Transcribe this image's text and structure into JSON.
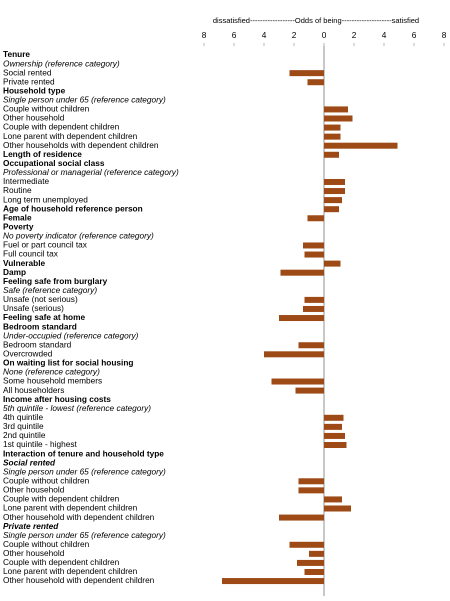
{
  "chart_data": {
    "type": "bar",
    "orientation": "horizontal",
    "title": "dissatisfied------------------Odds  of being--------------------satisfied",
    "color": "#9e4a17",
    "xlim": [
      -8,
      8
    ],
    "xticks": [
      {
        "value": -8,
        "label": "8"
      },
      {
        "value": -6,
        "label": "6"
      },
      {
        "value": -4,
        "label": "4"
      },
      {
        "value": -2,
        "label": "2"
      },
      0,
      2,
      4,
      6,
      8
    ],
    "categories": [
      "Tenure",
      "Ownership (reference category)",
      "Social rented",
      "Private rented",
      "Household type",
      "Single person under 65 (reference category)",
      "Couple without children",
      "Other household",
      "Couple with dependent children",
      "Lone parent with dependent children",
      "Other households with dependent children",
      "Length of residence",
      "Occupational social class",
      "Professional or managerial (reference category)",
      "Intermediate",
      "Routine",
      "Long term unemployed",
      "Age of household reference person",
      "Female",
      "Poverty",
      "No poverty indicator (reference category)",
      "Fuel or part council tax",
      "Full council tax",
      "Vulnerable",
      "Damp",
      "Feeling safe from burglary",
      "Safe (reference category)",
      "Unsafe (not serious)",
      "Unsafe (serious)",
      "Feeling safe at home",
      "Bedroom standard",
      "Under-occupied (reference category)",
      "Bedroom standard",
      "Overcrowded",
      "On waiting list for social housing",
      "None (reference category)",
      "Some household members",
      "All householders",
      "Income after housing costs",
      "5th quintile - lowest (reference category)",
      "4th quintile",
      "3rd quintile",
      "2nd quintile",
      "1st quintile - highest",
      "Interaction of tenure and household type",
      "Social rented",
      "Single person under 65 (reference category)",
      "Couple without children",
      "Other household",
      "Couple with dependent children",
      "Lone parent with dependent children",
      "Other household with dependent children",
      "Private rented",
      "Single person under 65 (reference category)",
      "Couple without children",
      "Other household",
      "Couple with dependent children",
      "Lone parent with dependent children",
      "Other household with dependent children"
    ],
    "label_styles": [
      "bold",
      "italic",
      "normal",
      "normal",
      "bold",
      "italic",
      "normal",
      "normal",
      "normal",
      "normal",
      "normal",
      "bold",
      "bold",
      "italic",
      "normal",
      "normal",
      "normal",
      "bold",
      "bold",
      "bold",
      "italic",
      "normal",
      "normal",
      "bold",
      "bold",
      "bold",
      "italic",
      "normal",
      "normal",
      "bold",
      "bold",
      "italic",
      "normal",
      "normal",
      "bold",
      "italic",
      "normal",
      "normal",
      "bold",
      "italic",
      "normal",
      "normal",
      "normal",
      "normal",
      "bold",
      "bold-italic",
      "italic",
      "normal",
      "normal",
      "normal",
      "normal",
      "normal",
      "bold-italic",
      "italic",
      "normal",
      "normal",
      "normal",
      "normal",
      "normal"
    ],
    "values": [
      null,
      null,
      -2.3,
      -1.1,
      null,
      null,
      1.6,
      1.9,
      1.1,
      1.1,
      4.9,
      1.0,
      null,
      null,
      1.4,
      1.4,
      1.2,
      1.0,
      -1.1,
      null,
      null,
      -1.4,
      -1.3,
      1.1,
      -2.9,
      null,
      null,
      -1.3,
      -1.4,
      -3.0,
      null,
      null,
      -1.7,
      -4.0,
      null,
      null,
      -3.5,
      -1.9,
      null,
      null,
      1.3,
      1.2,
      1.4,
      1.5,
      null,
      null,
      null,
      -1.7,
      -1.7,
      1.2,
      1.8,
      -3.0,
      null,
      null,
      -2.3,
      -1.0,
      -1.8,
      -1.3,
      -6.8
    ]
  }
}
